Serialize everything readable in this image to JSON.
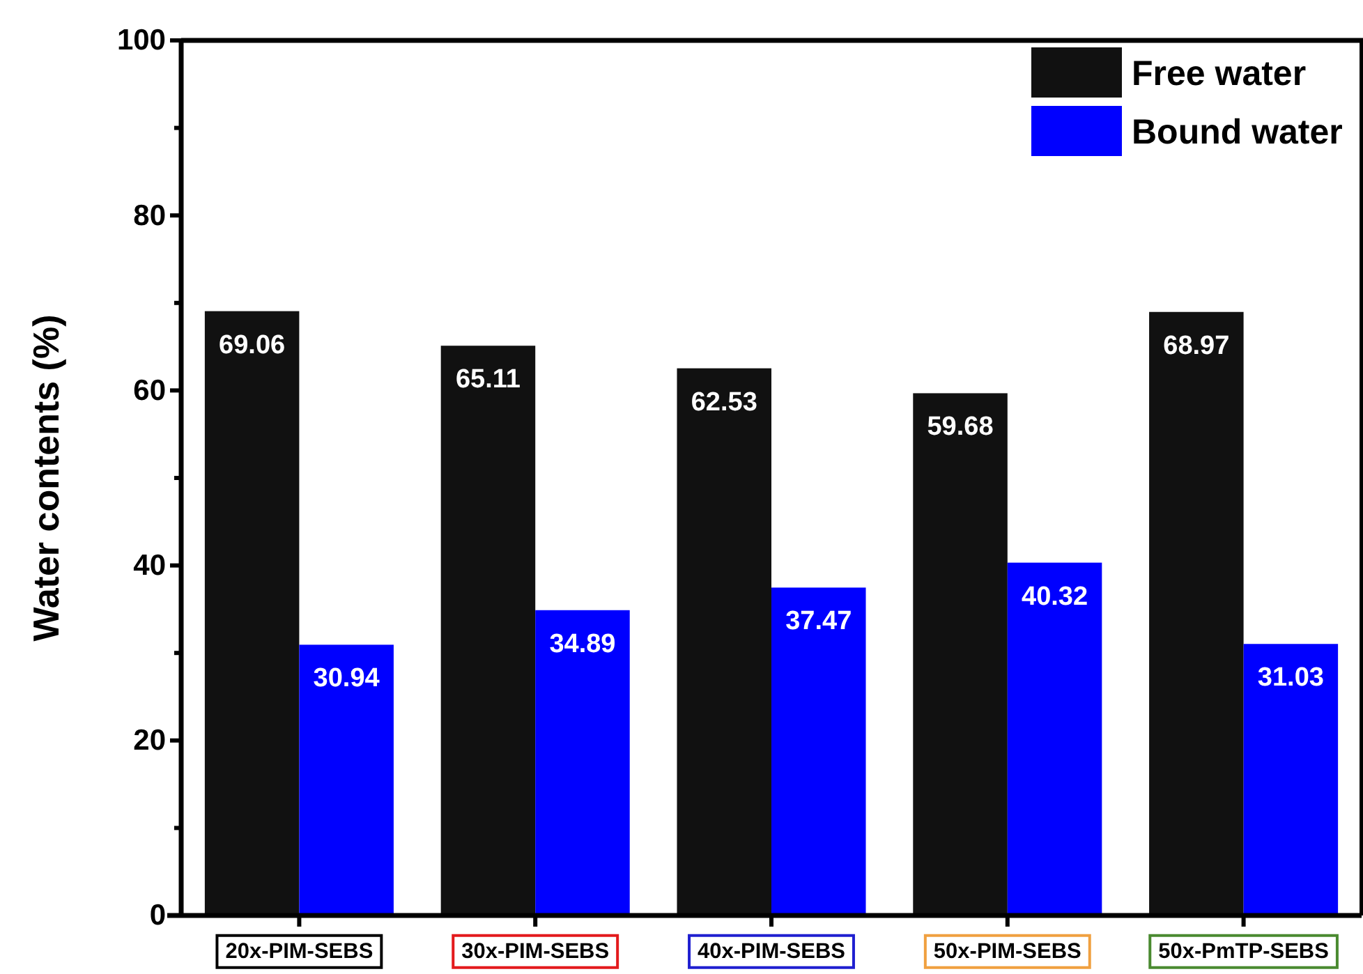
{
  "chart_data": {
    "type": "bar",
    "ylabel": "Water contents (%)",
    "categories": [
      "20x-PIM-SEBS",
      "30x-PIM-SEBS",
      "40x-PIM-SEBS",
      "50x-PIM-SEBS",
      "50x-PmTP-SEBS"
    ],
    "series": [
      {
        "name": "Free water",
        "color": "#111111",
        "values": [
          69.06,
          65.11,
          62.53,
          59.68,
          68.97
        ]
      },
      {
        "name": "Bound water",
        "color": "#0000ff",
        "values": [
          30.94,
          34.89,
          37.47,
          40.32,
          31.03
        ]
      }
    ],
    "ylim": [
      0,
      100
    ],
    "yticks": [
      0,
      20,
      40,
      60,
      80,
      100
    ],
    "data_labels": true,
    "legend": "top right"
  }
}
